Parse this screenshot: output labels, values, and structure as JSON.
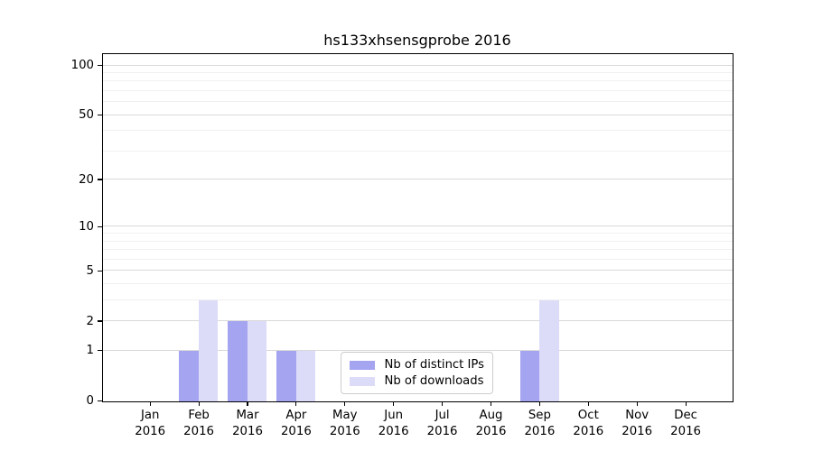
{
  "chart_data": {
    "type": "bar",
    "title": "hs133xhsensgprobe 2016",
    "categories": [
      "Jan\n2016",
      "Feb\n2016",
      "Mar\n2016",
      "Apr\n2016",
      "May\n2016",
      "Jun\n2016",
      "Jul\n2016",
      "Aug\n2016",
      "Sep\n2016",
      "Oct\n2016",
      "Nov\n2016",
      "Dec\n2016"
    ],
    "series": [
      {
        "name": "Nb of distinct IPs",
        "color": "#a4a4f1",
        "values": [
          0,
          1,
          2,
          1,
          0,
          0,
          0,
          0,
          1,
          0,
          0,
          0
        ]
      },
      {
        "name": "Nb of downloads",
        "color": "#dcdcf9",
        "values": [
          0,
          3,
          2,
          1,
          0,
          0,
          0,
          0,
          3,
          0,
          0,
          0
        ]
      }
    ],
    "yscale": "log1p",
    "ylim": [
      0,
      117
    ],
    "yticks": [
      0,
      1,
      2,
      5,
      10,
      20,
      50,
      100
    ],
    "yticks_minor": [
      3,
      4,
      6,
      7,
      8,
      9,
      30,
      40,
      60,
      70,
      80,
      90
    ],
    "grid": true,
    "legend_position": "lower-center"
  },
  "colors": {
    "background": "#ffffff",
    "axis": "#000000",
    "text": "#000000",
    "grid_major": "#d9d9d9",
    "grid_minor": "#f0f0f0",
    "legend_border": "#cccccc"
  }
}
